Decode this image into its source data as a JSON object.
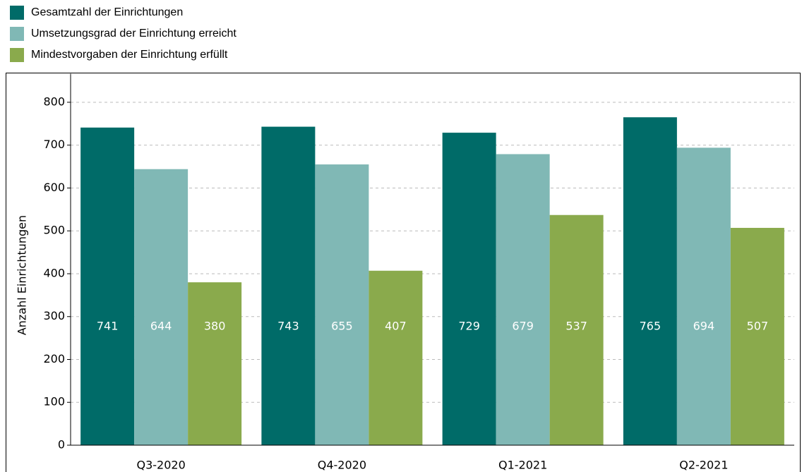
{
  "chart_data": {
    "type": "bar",
    "y_label": "Anzahl Einrichtungen",
    "categories": [
      "Q3-2020",
      "Q4-2020",
      "Q1-2021",
      "Q2-2021"
    ],
    "series": [
      {
        "name": "Gesamtzahl der Einrichtungen",
        "color": "#006b68",
        "values": [
          741,
          743,
          729,
          765
        ]
      },
      {
        "name": "Umsetzungsgrad der Einrichtung erreicht",
        "color": "#80b8b5",
        "values": [
          644,
          655,
          679,
          694
        ]
      },
      {
        "name": "Mindestvorgaben der Einrichtung erfüllt",
        "color": "#8aaa4c",
        "values": [
          380,
          407,
          537,
          507
        ]
      }
    ],
    "ylim": [
      0,
      860
    ],
    "yticks": [
      0,
      100,
      200,
      300,
      400,
      500,
      600,
      700,
      800
    ],
    "grid": true,
    "legend": "top-left"
  }
}
